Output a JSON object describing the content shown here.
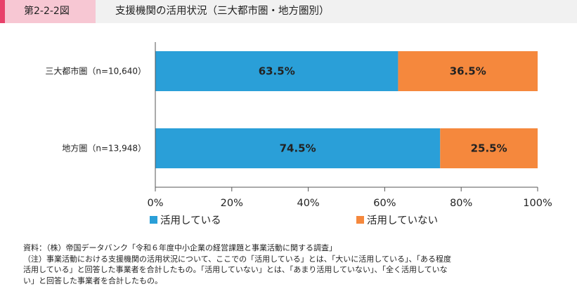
{
  "header": {
    "figure_number": "第2-2-2図",
    "title": "支援機関の活用状況（三大都市圏・地方圏別）"
  },
  "chart_data": {
    "type": "bar",
    "orientation": "horizontal",
    "stacked": true,
    "categories": [
      "三大都市圏（n=10,640）",
      "地方圏（n=13,948）"
    ],
    "series": [
      {
        "name": "活用している",
        "color": "#2a9fd8",
        "values": [
          63.5,
          74.5
        ],
        "labels": [
          "63.5%",
          "74.5%"
        ]
      },
      {
        "name": "活用していない",
        "color": "#f5883d",
        "values": [
          36.5,
          25.5
        ],
        "labels": [
          "36.5%",
          "25.5%"
        ]
      }
    ],
    "xlim": [
      0,
      100
    ],
    "xticks": [
      0,
      20,
      40,
      60,
      80,
      100
    ],
    "xtick_labels": [
      "0%",
      "20%",
      "40%",
      "60%",
      "80%",
      "100%"
    ],
    "legend_position": "bottom"
  },
  "notes": {
    "line1": "資料：（株）帝国データバンク「令和６年度中小企業の経営課題と事業活動に関する調査」",
    "line2": "（注）事業活動における支援機関の活用状況について、ここでの「活用している」とは、「大いに活用している」、「ある程度",
    "line3": "活用している」と回答した事業者を合計したもの。「活用していない」とは、「あまり活用していない」、「全く活用していな",
    "line4": "い」と回答した事業者を合計したもの。"
  }
}
